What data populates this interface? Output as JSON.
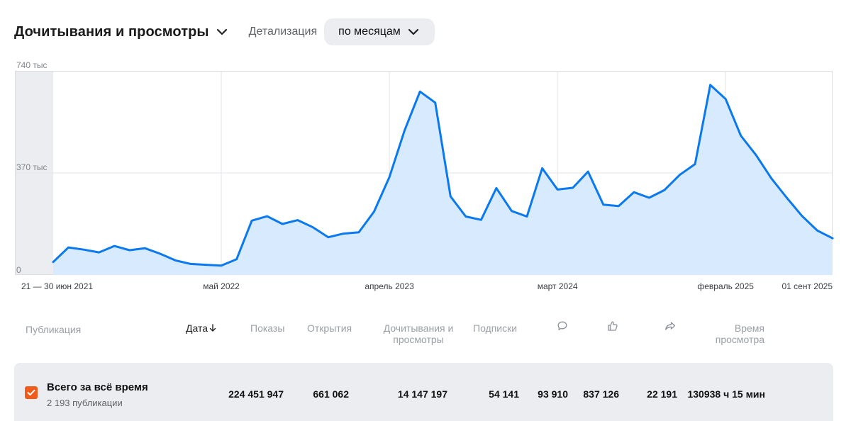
{
  "header": {
    "title": "Дочитывания и просмотры",
    "detail_label": "Детализация",
    "period_value": "по месяцам"
  },
  "chart_data": {
    "type": "area",
    "title": "",
    "xlabel": "",
    "ylabel": "",
    "y_tick_labels": [
      "740 тыс",
      "370 тыс",
      "0"
    ],
    "x_tick_labels": [
      "21 — 30 июн 2021",
      "май 2022",
      "апрель 2023",
      "март 2024",
      "февраль 2025",
      "01 сент 2025"
    ],
    "ylim": [
      0,
      740
    ],
    "y_unit": "тыс",
    "grid": true,
    "line_color": "#0a79f0",
    "fill_color": "#d8eafd",
    "x": [
      "2021-06",
      "2021-07",
      "2021-08",
      "2021-09",
      "2021-10",
      "2021-11",
      "2021-12",
      "2022-01",
      "2022-02",
      "2022-03",
      "2022-04",
      "2022-05",
      "2022-06",
      "2022-07",
      "2022-08",
      "2022-09",
      "2022-10",
      "2022-11",
      "2022-12",
      "2023-01",
      "2023-02",
      "2023-03",
      "2023-04",
      "2023-05",
      "2023-06",
      "2023-07",
      "2023-08",
      "2023-09",
      "2023-10",
      "2023-11",
      "2023-12",
      "2024-01",
      "2024-02",
      "2024-03",
      "2024-04",
      "2024-05",
      "2024-06",
      "2024-07",
      "2024-08",
      "2024-09",
      "2024-10",
      "2024-11",
      "2024-12",
      "2025-01",
      "2025-02",
      "2025-03",
      "2025-04",
      "2025-05",
      "2025-06",
      "2025-07",
      "2025-08",
      "2025-09"
    ],
    "values": [
      47,
      100,
      92,
      82,
      105,
      90,
      97,
      77,
      53,
      40,
      37,
      34,
      57,
      197,
      213,
      185,
      199,
      173,
      137,
      150,
      155,
      230,
      355,
      525,
      665,
      625,
      285,
      212,
      200,
      315,
      232,
      212,
      387,
      310,
      316,
      375,
      255,
      250,
      300,
      280,
      308,
      363,
      402,
      689,
      638,
      505,
      434,
      350,
      280,
      214,
      161,
      133
    ]
  },
  "table": {
    "headers": {
      "publication": "Публикация",
      "date": "Дата",
      "impressions": "Показы",
      "opens": "Открытия",
      "reads_views": "Дочитывания и просмотры",
      "subscriptions": "Подписки",
      "watch_time": "Время просмотра"
    },
    "total_row": {
      "title": "Всего за всё время",
      "subtitle": "2 193 публикации",
      "impressions": "224 451 947",
      "opens": "661 062",
      "reads_views": "14 147 197",
      "subscriptions": "54 141",
      "comments": "93 910",
      "likes": "837 126",
      "shares": "22 191",
      "watch_time": "130938 ч 15 мин"
    }
  },
  "icons": {
    "title_dropdown": "chevron-down-icon",
    "period_dropdown": "chevron-down-icon",
    "sort": "arrow-down-icon",
    "comments": "comment-icon",
    "likes": "thumbs-up-icon",
    "shares": "share-icon",
    "checkbox": "check-icon"
  },
  "colors": {
    "accent": "#f25c1a",
    "line": "#0a79f0",
    "fill": "#d8eafd",
    "row_bg": "#ebedf0"
  }
}
